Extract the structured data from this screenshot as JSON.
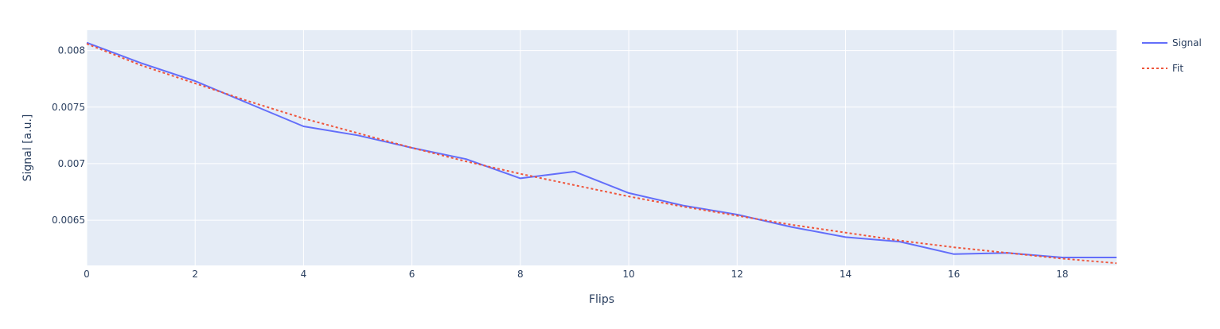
{
  "chart_data": {
    "type": "line",
    "title": "",
    "xlabel": "Flips",
    "ylabel": "Signal [a.u.]",
    "xlim": [
      0,
      19
    ],
    "ylim": [
      0.0061,
      0.00818
    ],
    "x_ticks": [
      0,
      2,
      4,
      6,
      8,
      10,
      12,
      14,
      16,
      18
    ],
    "y_ticks": [
      0.0065,
      0.007,
      0.0075,
      0.008
    ],
    "x_tick_labels": [
      "0",
      "2",
      "4",
      "6",
      "8",
      "10",
      "12",
      "14",
      "16",
      "18"
    ],
    "y_tick_labels": [
      "0.0065",
      "0.007",
      "0.0075",
      "0.008"
    ],
    "grid": true,
    "legend": "top-right",
    "x": [
      0,
      1,
      2,
      3,
      4,
      5,
      6,
      7,
      8,
      9,
      10,
      11,
      12,
      13,
      14,
      15,
      16,
      17,
      18,
      19
    ],
    "series": [
      {
        "name": "Signal",
        "color": "#636efa",
        "dash": "solid",
        "values": [
          0.00807,
          0.00789,
          0.00773,
          0.00753,
          0.00733,
          0.00725,
          0.00714,
          0.00704,
          0.00687,
          0.00693,
          0.00674,
          0.00663,
          0.00655,
          0.00644,
          0.00635,
          0.00631,
          0.0062,
          0.00621,
          0.00617,
          0.00617
        ]
      },
      {
        "name": "Fit",
        "color": "#ef553b",
        "dash": "dot",
        "values": [
          0.00806,
          0.00787,
          0.00771,
          0.00755,
          0.0074,
          0.00727,
          0.00714,
          0.00702,
          0.00691,
          0.00681,
          0.00671,
          0.00662,
          0.00654,
          0.00646,
          0.00639,
          0.00632,
          0.00626,
          0.00621,
          0.00616,
          0.00612
        ]
      }
    ]
  }
}
